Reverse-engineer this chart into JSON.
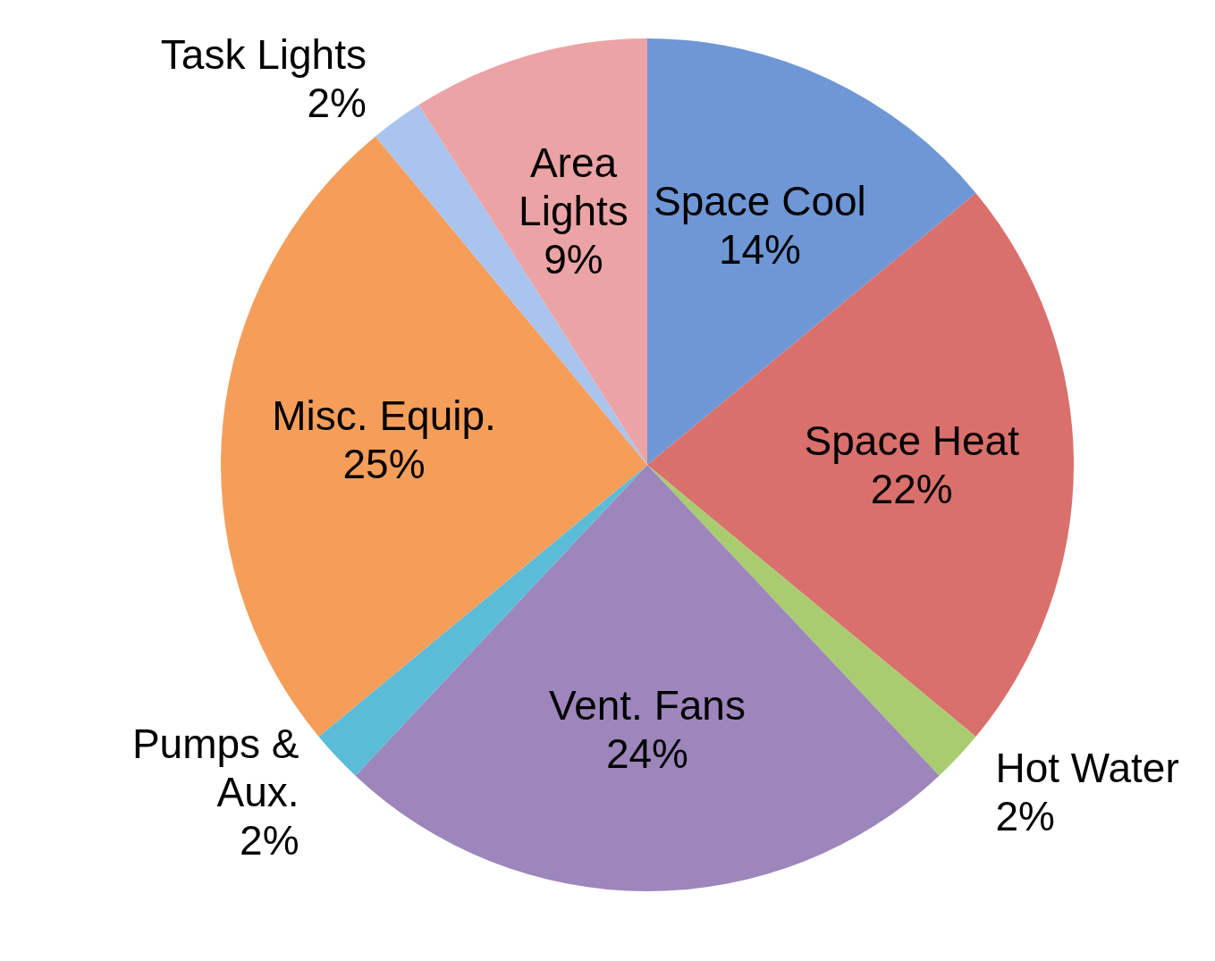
{
  "chart_data": {
    "type": "pie",
    "categories": [
      "Space Cool",
      "Space Heat",
      "Hot Water",
      "Vent. Fans",
      "Pumps & Aux.",
      "Misc. Equip.",
      "Task Lights",
      "Area Lights"
    ],
    "values": [
      14,
      22,
      2,
      24,
      2,
      25,
      2,
      9
    ],
    "colors": [
      "#6f97d6",
      "#d9706c",
      "#a9cc70",
      "#9d86bb",
      "#5bbcd8",
      "#f59e5a",
      "#a9c4ef",
      "#eca3a5"
    ],
    "value_labels": [
      "14%",
      "22%",
      "2%",
      "24%",
      "2%",
      "25%",
      "2%",
      "9%"
    ]
  }
}
